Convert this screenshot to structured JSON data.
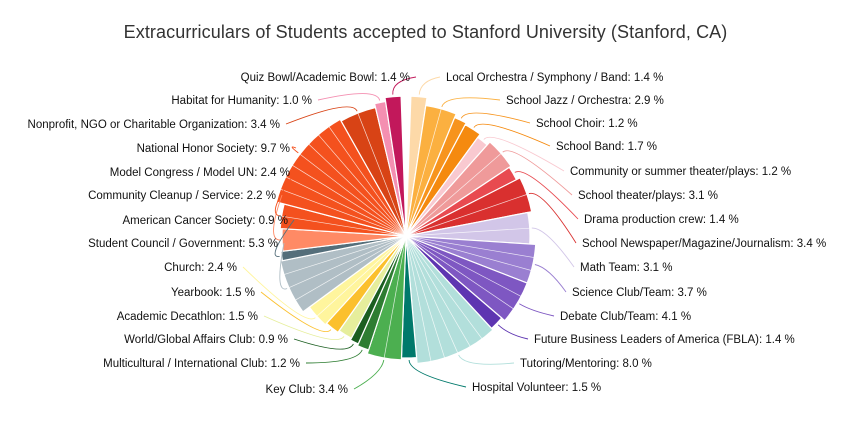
{
  "chart_data": {
    "type": "pie",
    "title": "Extracurriculars of Students accepted to Stanford University (Stanford, CA)",
    "unit": "%",
    "slices": [
      {
        "label": "Local Orchestra / Symphony / Band",
        "value": 1.4,
        "color": "#fdd9a8",
        "side": "right"
      },
      {
        "label": "School Jazz / Orchestra",
        "value": 2.9,
        "color": "#fbb040",
        "side": "right"
      },
      {
        "label": "School Choir",
        "value": 1.2,
        "color": "#f7941d",
        "side": "right"
      },
      {
        "label": "School Band",
        "value": 1.7,
        "color": "#f58a0f",
        "side": "right"
      },
      {
        "label": "Community or summer theater/plays",
        "value": 1.2,
        "color": "#f9c9d0",
        "side": "right"
      },
      {
        "label": "School theater/plays",
        "value": 3.1,
        "color": "#ef9a9a",
        "side": "right"
      },
      {
        "label": "Drama production crew",
        "value": 1.4,
        "color": "#e84a50",
        "side": "right"
      },
      {
        "label": "School Newspaper/Magazine/Journalism",
        "value": 3.4,
        "color": "#d9302f",
        "side": "right"
      },
      {
        "label": "Math Team",
        "value": 3.1,
        "color": "#d2c6e8",
        "side": "right"
      },
      {
        "label": "Science Club/Team",
        "value": 3.7,
        "color": "#9a7fd1",
        "side": "right"
      },
      {
        "label": "Debate Club/Team",
        "value": 4.1,
        "color": "#7e57c2",
        "side": "right"
      },
      {
        "label": "Future Business Leaders of America (FBLA)",
        "value": 1.4,
        "color": "#5e35b1",
        "side": "right"
      },
      {
        "label": "Tutoring/Mentoring",
        "value": 8.0,
        "color": "#b2dfdb",
        "side": "right"
      },
      {
        "label": "Hospital Volunteer",
        "value": 1.5,
        "color": "#00796b",
        "side": "right"
      },
      {
        "label": "Key Club",
        "value": 3.4,
        "color": "#4caf50",
        "side": "left"
      },
      {
        "label": "Multicultural / International Club",
        "value": 1.2,
        "color": "#2e7d32",
        "side": "left"
      },
      {
        "label": "World/Global Affairs Club",
        "value": 0.9,
        "color": "#1b5e20",
        "side": "left"
      },
      {
        "label": "Academic Decathlon",
        "value": 1.5,
        "color": "#e6ee9c",
        "side": "left"
      },
      {
        "label": "Yearbook",
        "value": 1.5,
        "color": "#fbc02d",
        "side": "left"
      },
      {
        "label": "Church",
        "value": 2.4,
        "color": "#fff59d",
        "side": "left"
      },
      {
        "label": "Student Council / Government",
        "value": 5.3,
        "color": "#b0bec5",
        "side": "left"
      },
      {
        "label": "American Cancer Society",
        "value": 0.9,
        "color": "#546e7a",
        "side": "left"
      },
      {
        "label": "Community Cleanup / Service",
        "value": 2.2,
        "color": "#ff8a65",
        "side": "left"
      },
      {
        "label": "Model Congress / Model UN",
        "value": 2.4,
        "color": "#f4511e",
        "side": "left"
      },
      {
        "label": "National Honor Society",
        "value": 9.7,
        "color": "#f4511e",
        "side": "left"
      },
      {
        "label": "Nonprofit, NGO or Charitable Organization",
        "value": 3.4,
        "color": "#d84315",
        "side": "left"
      },
      {
        "label": "Habitat for Humanity",
        "value": 1.0,
        "color": "#f48fb1",
        "side": "left"
      },
      {
        "label": "Quiz Bowl/Academic Bowl",
        "value": 1.4,
        "color": "#c2185b",
        "side": "left"
      }
    ]
  }
}
